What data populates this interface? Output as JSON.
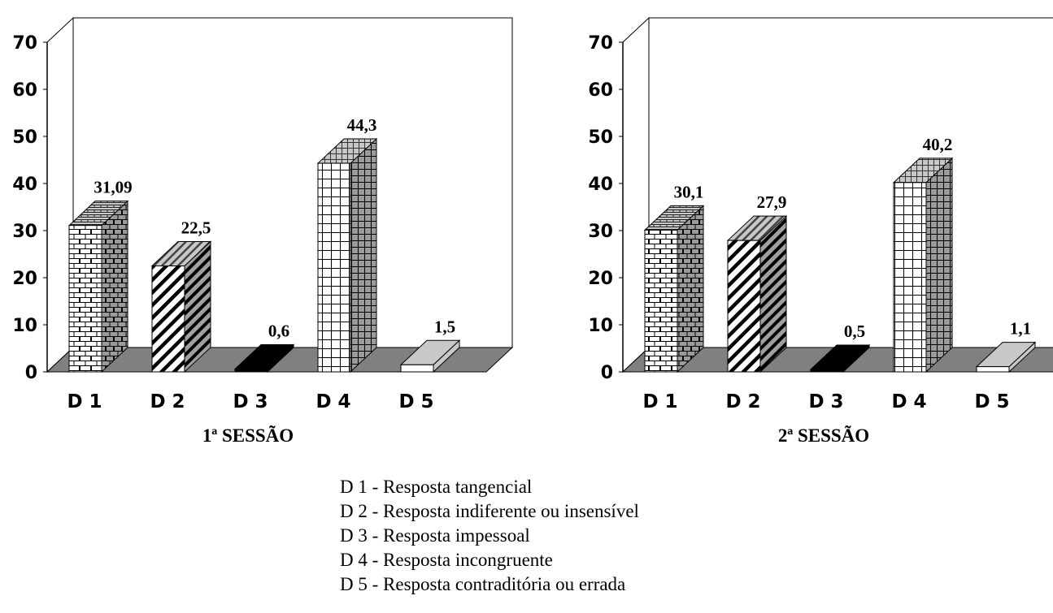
{
  "chart_data": [
    {
      "type": "bar",
      "xlabel": "1ª SESSÃO",
      "ylim": [
        0,
        70
      ],
      "yticks": [
        0,
        10,
        20,
        30,
        40,
        50,
        60,
        70
      ],
      "categories": [
        "D 1",
        "D 2",
        "D 3",
        "D 4",
        "D 5"
      ],
      "values": [
        31.09,
        22.5,
        0.6,
        44.3,
        1.5
      ],
      "data_labels": [
        "31,09",
        "22,5",
        "0,6",
        "44,3",
        "1,5"
      ],
      "style": "3d-bars",
      "grid": false
    },
    {
      "type": "bar",
      "xlabel": "2ª SESSÃO",
      "ylim": [
        0,
        70
      ],
      "yticks": [
        0,
        10,
        20,
        30,
        40,
        50,
        60,
        70
      ],
      "categories": [
        "D 1",
        "D 2",
        "D 3",
        "D 4",
        "D 5"
      ],
      "values": [
        30.1,
        27.9,
        0.5,
        40.2,
        1.1
      ],
      "data_labels": [
        "30,1",
        "27,9",
        "0,5",
        "40,2",
        "1,1"
      ],
      "style": "3d-bars",
      "grid": false
    }
  ],
  "legend": [
    "D 1 - Resposta tangencial",
    "D 2 - Resposta indiferente ou insensível",
    "D 3 - Resposta impessoal",
    "D 4 - Resposta incongruente",
    "D 5 - Resposta contraditória ou errada"
  ],
  "colors": {
    "floor": "#808080",
    "top_face": "#c0c0c0",
    "side_face": "#808080",
    "d3_fill": "#000000",
    "d5_fill": "#c8c8c8"
  }
}
